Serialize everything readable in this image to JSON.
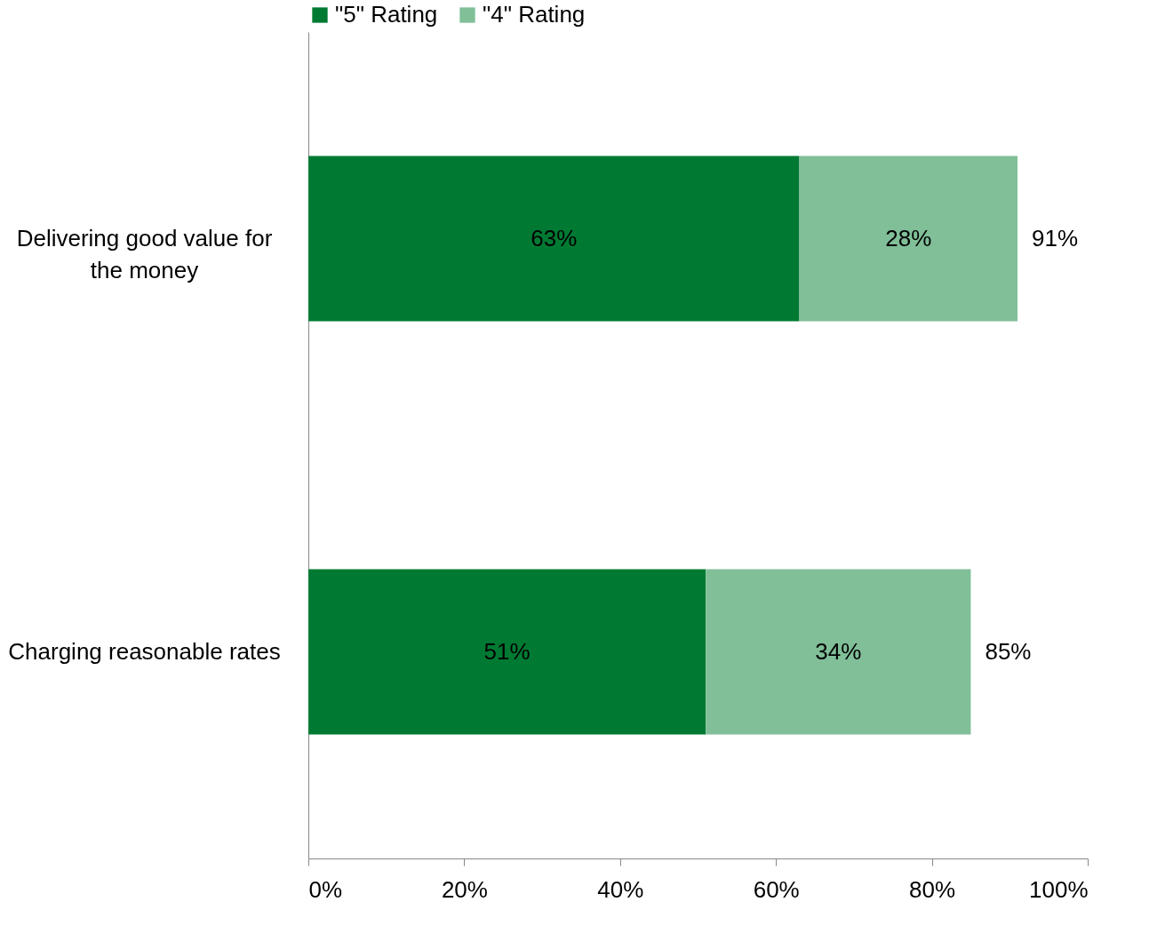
{
  "chart_data": {
    "type": "bar",
    "orientation": "horizontal",
    "stacked": true,
    "categories": [
      "Delivering good value for the money",
      "Charging reasonable rates"
    ],
    "series": [
      {
        "name": "\"5\" Rating",
        "color": "#007a33",
        "values": [
          63,
          51
        ],
        "value_labels": [
          "63%",
          "51%"
        ]
      },
      {
        "name": "\"4\" Rating",
        "color": "#80bf98",
        "values": [
          28,
          34
        ],
        "value_labels": [
          "28%",
          "34%"
        ]
      }
    ],
    "totals": [
      "91%",
      "85%"
    ],
    "xlim": [
      0,
      100
    ],
    "xticks": [
      {
        "value": 0,
        "label": "0%"
      },
      {
        "value": 20,
        "label": "20%"
      },
      {
        "value": 40,
        "label": "40%"
      },
      {
        "value": 60,
        "label": "60%"
      },
      {
        "value": 80,
        "label": "80%"
      },
      {
        "value": 100,
        "label": "100%"
      }
    ],
    "grid": false,
    "legend": "top"
  }
}
